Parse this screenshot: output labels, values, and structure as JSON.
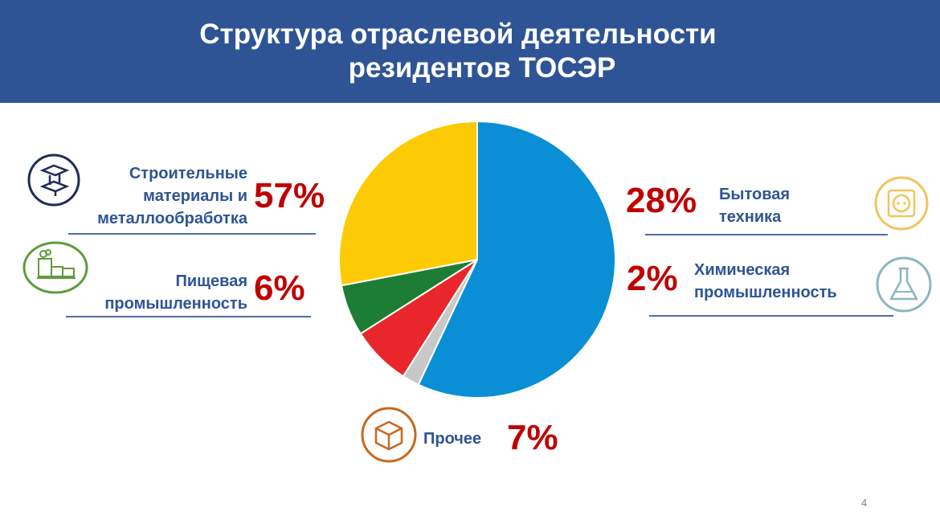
{
  "header": {
    "title_line1": "Структура отраслевой деятельности",
    "title_line2": "резидентов ТОСЭР"
  },
  "labels": {
    "construction": {
      "line1": "Строительные",
      "line2": "материалы и",
      "line3": "металлообработка",
      "pct": "57%"
    },
    "food": {
      "line1": "Пищевая",
      "line2": "промышленность",
      "pct": "6%"
    },
    "appliances": {
      "line1": "Бытовая",
      "line2": "техника",
      "pct": "28%"
    },
    "chemical": {
      "line1": "Химическая",
      "line2": "промышленность",
      "pct": "2%"
    },
    "other": {
      "line1": "Прочее",
      "pct": "7%"
    }
  },
  "page_number": "4",
  "chart_data": {
    "type": "pie",
    "title": "Структура отраслевой деятельности резидентов ТОСЭР",
    "slices": [
      {
        "label": "Строительные материалы и металлообработка",
        "value": 57,
        "color": "#0a8fd6"
      },
      {
        "label": "Химическая промышленность",
        "value": 2,
        "color": "#c8c8c8"
      },
      {
        "label": "Прочее",
        "value": 7,
        "color": "#e8262c"
      },
      {
        "label": "Пищевая промышленность",
        "value": 6,
        "color": "#1e7d34"
      },
      {
        "label": "Бытовая техника",
        "value": 28,
        "color": "#fccb05"
      }
    ]
  },
  "colors": {
    "header_bg": "#2e5495",
    "label_text": "#2e5495",
    "percent_text": "#c00000",
    "icon_construction": "#1f2b55",
    "icon_food": "#5f9b3a",
    "icon_appliances": "#f2c45a",
    "icon_chemical": "#8ab7bf",
    "icon_other": "#c8681e"
  },
  "icons": {
    "construction": "steel-beam-icon",
    "food": "factory-icon",
    "appliances": "power-socket-icon",
    "chemical": "flask-icon",
    "other": "box-icon"
  }
}
